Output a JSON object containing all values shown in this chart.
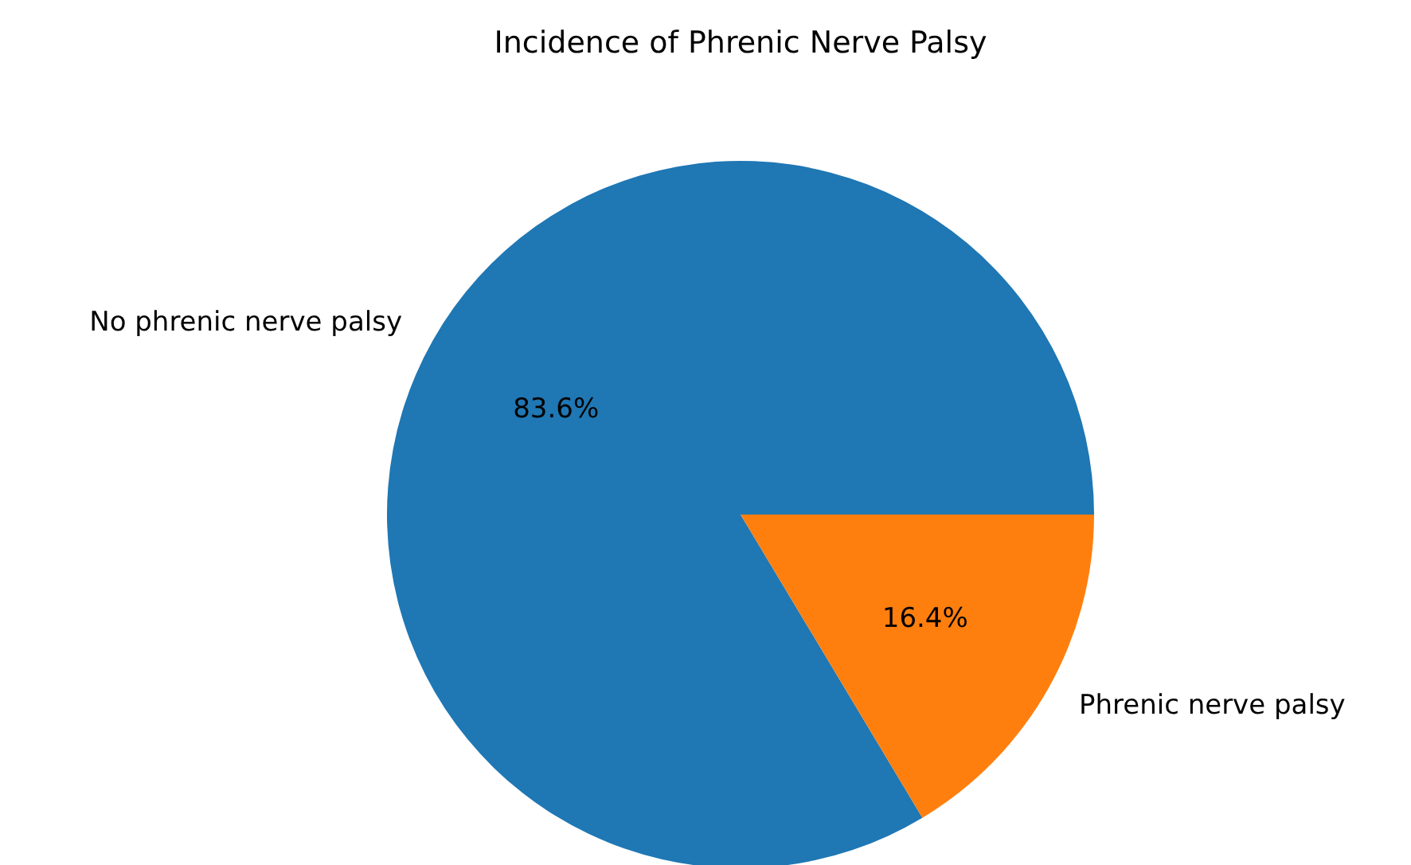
{
  "chart_data": {
    "type": "pie",
    "title": "Incidence of Phrenic Nerve Palsy",
    "categories": [
      "No phrenic nerve palsy",
      "Phrenic nerve palsy"
    ],
    "values": [
      83.6,
      16.4
    ],
    "colors": [
      "#1f77b4",
      "#ff7f0e"
    ],
    "value_labels": [
      "83.6%",
      "16.4%"
    ]
  }
}
